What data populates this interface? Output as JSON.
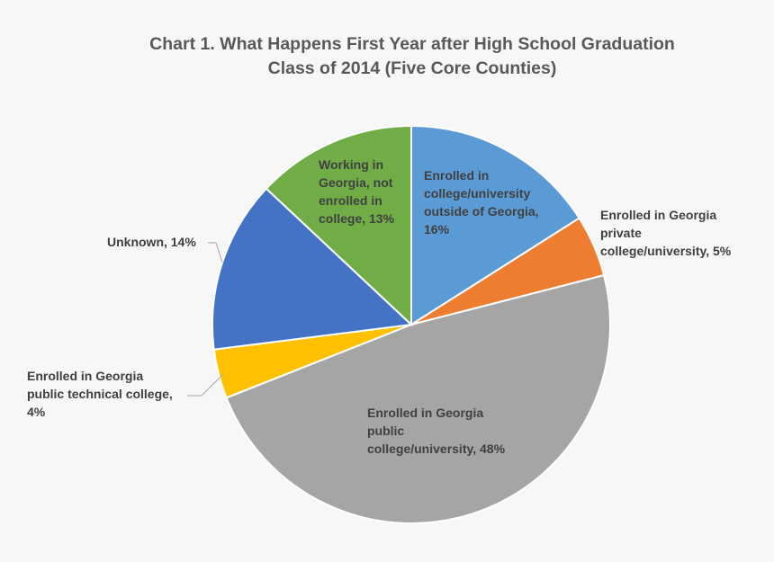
{
  "chart_data": {
    "type": "pie",
    "title": "Chart 1. What Happens First Year after High School Graduation",
    "subtitle": "Class of 2014 (Five Core Counties)",
    "slices": [
      {
        "label_lines": [
          "Enrolled in",
          "college/university",
          "outside of Georgia,",
          "16%"
        ],
        "value": 16,
        "color": "#5b9bd5"
      },
      {
        "label_lines": [
          "Enrolled in Georgia",
          "private",
          "college/university, 5%"
        ],
        "value": 5,
        "color": "#ed7d31"
      },
      {
        "label_lines": [
          "Enrolled in Georgia",
          "public",
          "college/university, 48%"
        ],
        "value": 48,
        "color": "#a5a5a5"
      },
      {
        "label_lines": [
          "Enrolled in Georgia",
          "public technical college,",
          "4%"
        ],
        "value": 4,
        "color": "#ffc000"
      },
      {
        "label_lines": [
          "Unknown, 14%"
        ],
        "value": 14,
        "color": "#4472c4"
      },
      {
        "label_lines": [
          "Working in",
          "Georgia, not",
          "enrolled in",
          "college, 13%"
        ],
        "value": 13,
        "color": "#70ad47"
      }
    ]
  }
}
